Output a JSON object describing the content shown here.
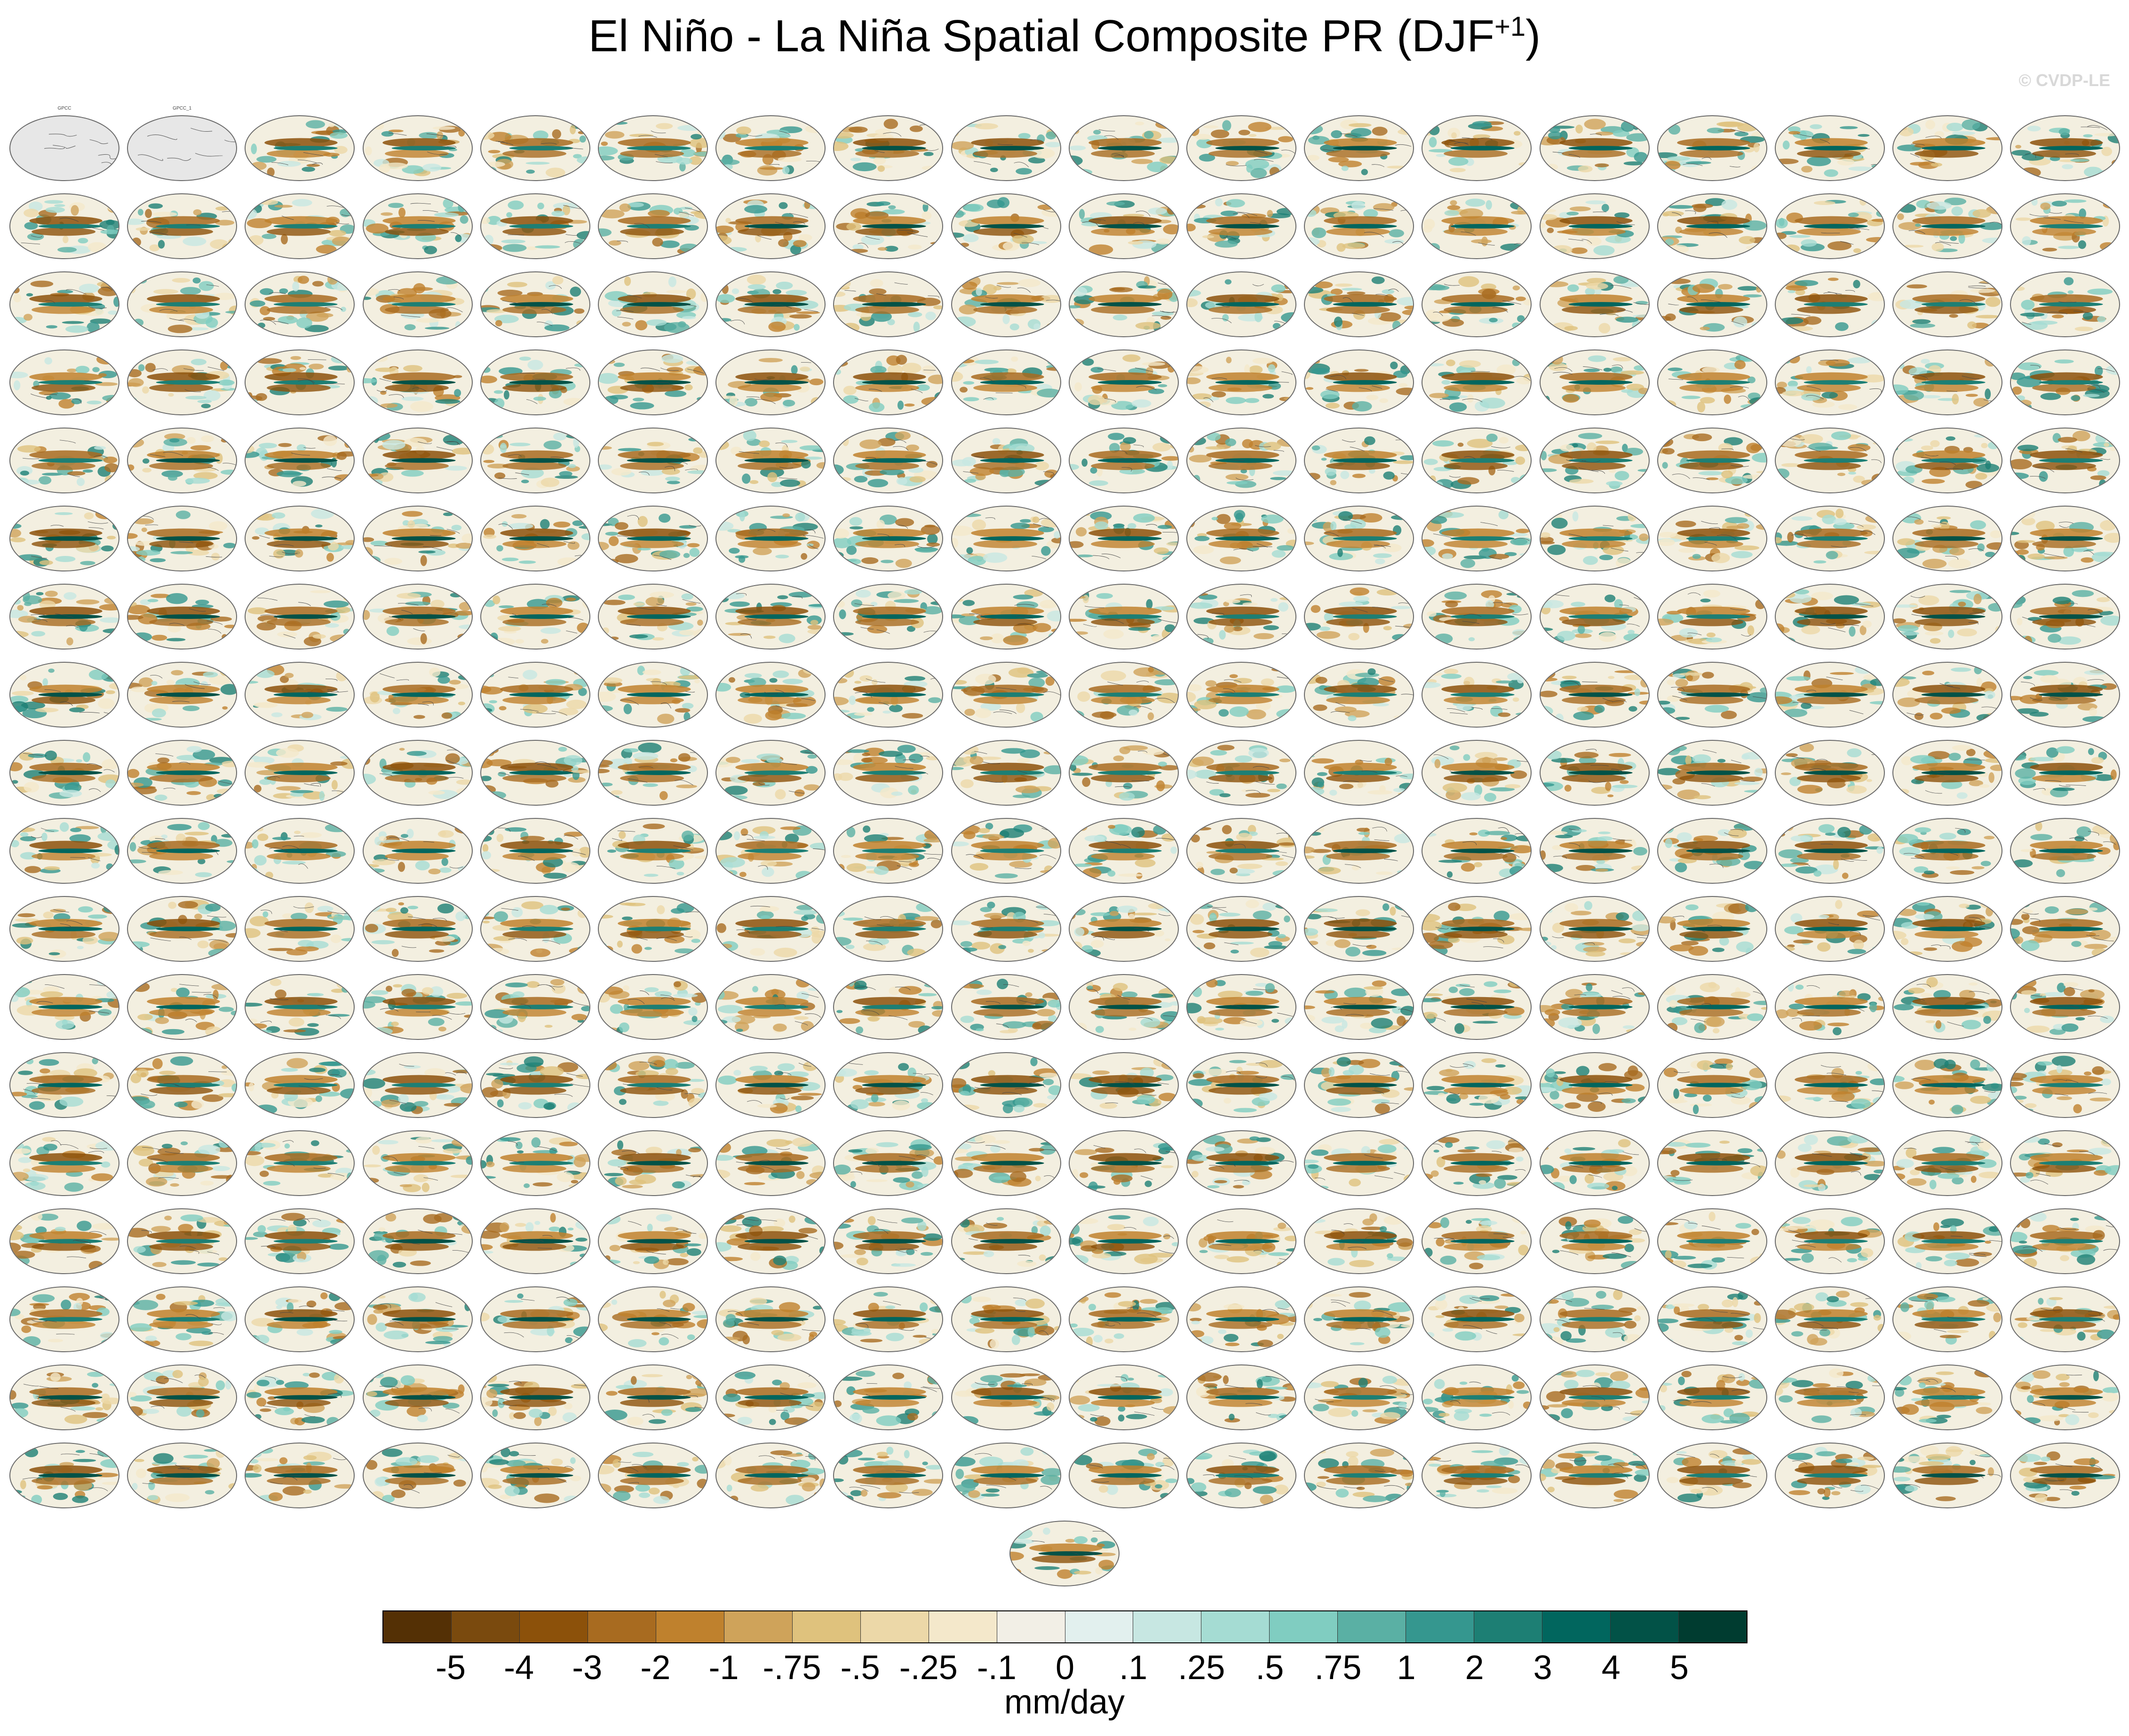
{
  "chart_data": {
    "type": "heatmap",
    "title": "El Niño - La Niña Spatial Composite PR (DJF",
    "title_superscript": "+1",
    "units": "mm/day",
    "colorbar_labels": [
      "-5",
      "-4",
      "-3",
      "-2",
      "-1",
      "-.75",
      "-.5",
      "-.25",
      "-.1",
      "0",
      ".1",
      ".25",
      ".5",
      ".75",
      "1",
      "2",
      "3",
      "4",
      "5"
    ],
    "colorbar_colors": [
      "#543005",
      "#7a4a0e",
      "#8c510a",
      "#a86b20",
      "#bf812d",
      "#cfa35a",
      "#dfc27d",
      "#ecd8a8",
      "#f4e8cb",
      "#f2efe6",
      "#e2f0ee",
      "#c7e7e2",
      "#a5dcd3",
      "#80cdc1",
      "#5ab0a4",
      "#35978f",
      "#1d7f74",
      "#01665e",
      "#025247",
      "#003c30"
    ],
    "grid_rows": 18,
    "grid_cols": 18,
    "extra_panels": 1,
    "observation_panels": [
      {
        "title": "GPCC"
      },
      {
        "title": "GPCC_1"
      }
    ],
    "panel_title_color": "#4a8fb3"
  },
  "watermark": "© CVDP-LE"
}
